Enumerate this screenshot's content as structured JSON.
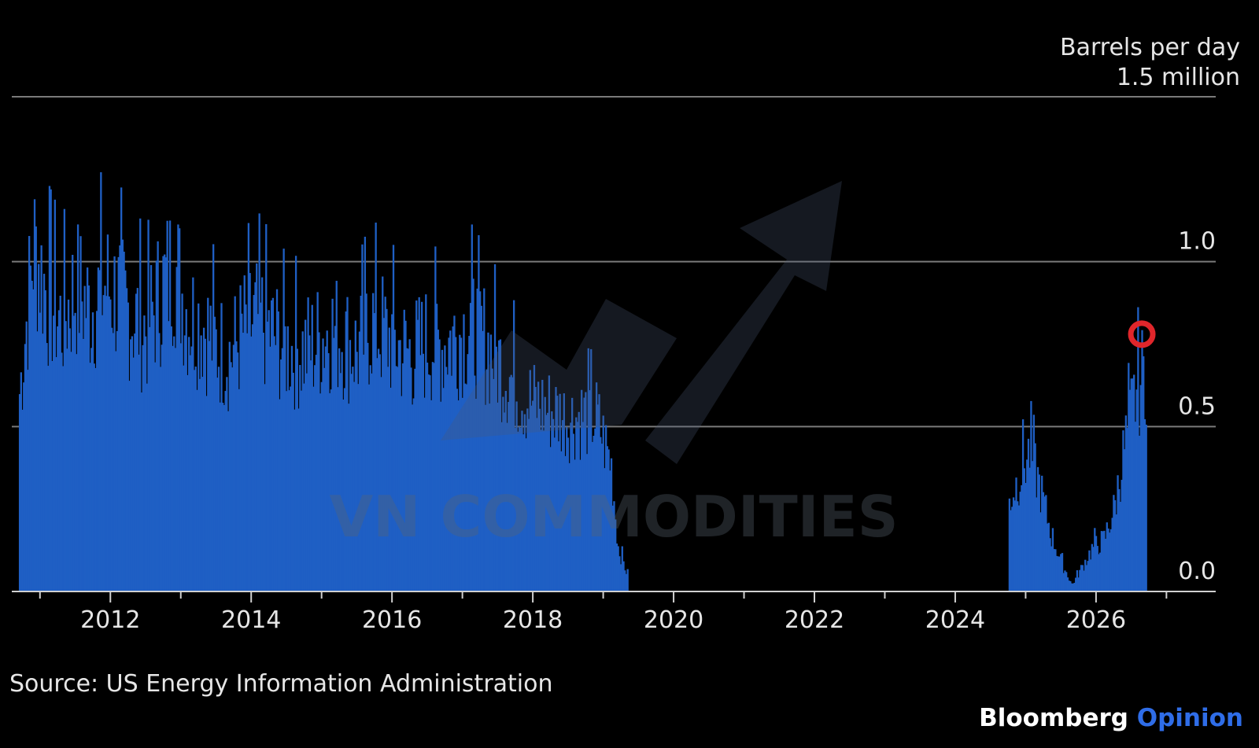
{
  "chart": {
    "unit_line1": "Barrels per day",
    "unit_line2": "1.5 million",
    "source": "Source: US Energy Information Administration",
    "watermark": "VN COMMODITIES",
    "brand_primary": "Bloomberg",
    "brand_secondary": "Opinion"
  },
  "colors": {
    "background": "#000000",
    "bar": "#1f5fc4",
    "gridline": "#7a7a7a",
    "highlight_circle": "#e0262b",
    "brand_accent": "#2f6de8"
  },
  "chart_data": {
    "type": "bar",
    "title": "",
    "xlabel": "",
    "ylabel": "Barrels per day",
    "ylim": [
      0,
      1.5
    ],
    "y_ticks": [
      0.0,
      0.5,
      1.0
    ],
    "y_tick_labels": [
      "0.0",
      "0.5",
      "1.0"
    ],
    "x_range": [
      2011.0,
      2027.5
    ],
    "x_tick_labels": [
      "2012",
      "2014",
      "2016",
      "2018",
      "2020",
      "2022",
      "2024",
      "2026"
    ],
    "x_tick_values": [
      2012,
      2014,
      2016,
      2018,
      2020,
      2022,
      2024,
      2026
    ],
    "grid": true,
    "legend": "none",
    "series": [
      {
        "values_points": [
          [
            2010.7,
            0.62
          ],
          [
            2010.9,
            1.08
          ],
          [
            2011.1,
            0.92
          ],
          [
            2011.3,
            0.84
          ],
          [
            2011.5,
            0.95
          ],
          [
            2011.7,
            0.88
          ],
          [
            2011.9,
            0.96
          ],
          [
            2012.1,
            0.92
          ],
          [
            2012.3,
            0.86
          ],
          [
            2012.5,
            0.82
          ],
          [
            2012.7,
            0.93
          ],
          [
            2012.9,
            1.02
          ],
          [
            2013.1,
            0.86
          ],
          [
            2013.3,
            0.84
          ],
          [
            2013.5,
            0.76
          ],
          [
            2013.7,
            0.74
          ],
          [
            2013.9,
            0.82
          ],
          [
            2014.1,
            0.85
          ],
          [
            2014.3,
            0.8
          ],
          [
            2014.5,
            0.76
          ],
          [
            2014.7,
            0.75
          ],
          [
            2014.9,
            0.77
          ],
          [
            2015.1,
            0.82
          ],
          [
            2015.3,
            0.79
          ],
          [
            2015.5,
            0.75
          ],
          [
            2015.7,
            0.84
          ],
          [
            2015.9,
            0.8
          ],
          [
            2016.1,
            0.76
          ],
          [
            2016.3,
            0.74
          ],
          [
            2016.5,
            0.78
          ],
          [
            2016.7,
            0.77
          ],
          [
            2016.9,
            0.8
          ],
          [
            2017.1,
            0.83
          ],
          [
            2017.3,
            0.78
          ],
          [
            2017.5,
            0.72
          ],
          [
            2017.7,
            0.66
          ],
          [
            2017.9,
            0.6
          ],
          [
            2018.1,
            0.58
          ],
          [
            2018.3,
            0.56
          ],
          [
            2018.5,
            0.54
          ],
          [
            2018.7,
            0.55
          ],
          [
            2018.9,
            0.54
          ],
          [
            2019.1,
            0.4
          ],
          [
            2019.2,
            0.14
          ],
          [
            2019.35,
            0.04
          ],
          [
            2024.75,
            0.28
          ],
          [
            2024.9,
            0.36
          ],
          [
            2025.05,
            0.44
          ],
          [
            2025.2,
            0.32
          ],
          [
            2025.35,
            0.18
          ],
          [
            2025.5,
            0.09
          ],
          [
            2025.65,
            0.02
          ],
          [
            2025.8,
            0.08
          ],
          [
            2025.95,
            0.14
          ],
          [
            2026.1,
            0.16
          ],
          [
            2026.25,
            0.26
          ],
          [
            2026.4,
            0.46
          ],
          [
            2026.55,
            0.62
          ],
          [
            2026.7,
            0.7
          ]
        ]
      }
    ],
    "highlight_point": [
      2026.65,
      0.78
    ]
  }
}
